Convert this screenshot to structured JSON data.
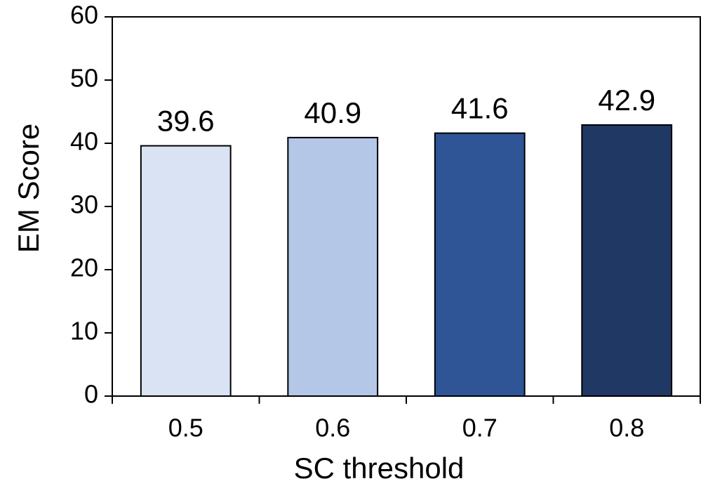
{
  "chart_data": {
    "type": "bar",
    "x_label": "SC threshold",
    "y_label": "EM Score",
    "categories": [
      "0.5",
      "0.6",
      "0.7",
      "0.8"
    ],
    "values": [
      39.6,
      40.9,
      41.6,
      42.9
    ],
    "colors": [
      "#dae3f3",
      "#b4c7e7",
      "#2f5597",
      "#203864"
    ],
    "ylim": [
      0,
      60
    ],
    "yticks": [
      0,
      10,
      20,
      30,
      40,
      50,
      60
    ],
    "grid": false
  }
}
